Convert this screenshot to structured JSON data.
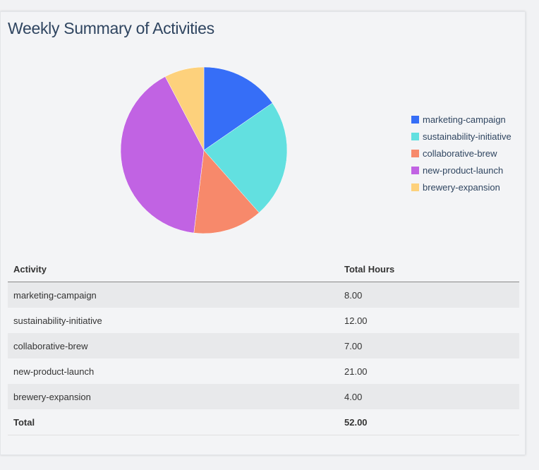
{
  "title": "Weekly Summary of Activities",
  "chart_data": {
    "type": "pie",
    "title": "Weekly Summary of Activities",
    "categories": [
      "marketing-campaign",
      "sustainability-initiative",
      "collaborative-brew",
      "new-product-launch",
      "brewery-expansion"
    ],
    "values": [
      8,
      12,
      7,
      21,
      4
    ],
    "colors": [
      "#366ef7",
      "#62e0e0",
      "#f7896b",
      "#c163e3",
      "#fdd17c"
    ],
    "legend": "right"
  },
  "table": {
    "headers": [
      "Activity",
      "Total Hours"
    ],
    "rows": [
      [
        "marketing-campaign",
        "8.00"
      ],
      [
        "sustainability-initiative",
        "12.00"
      ],
      [
        "collaborative-brew",
        "7.00"
      ],
      [
        "new-product-launch",
        "21.00"
      ],
      [
        "brewery-expansion",
        "4.00"
      ]
    ],
    "total": [
      "Total",
      "52.00"
    ]
  }
}
